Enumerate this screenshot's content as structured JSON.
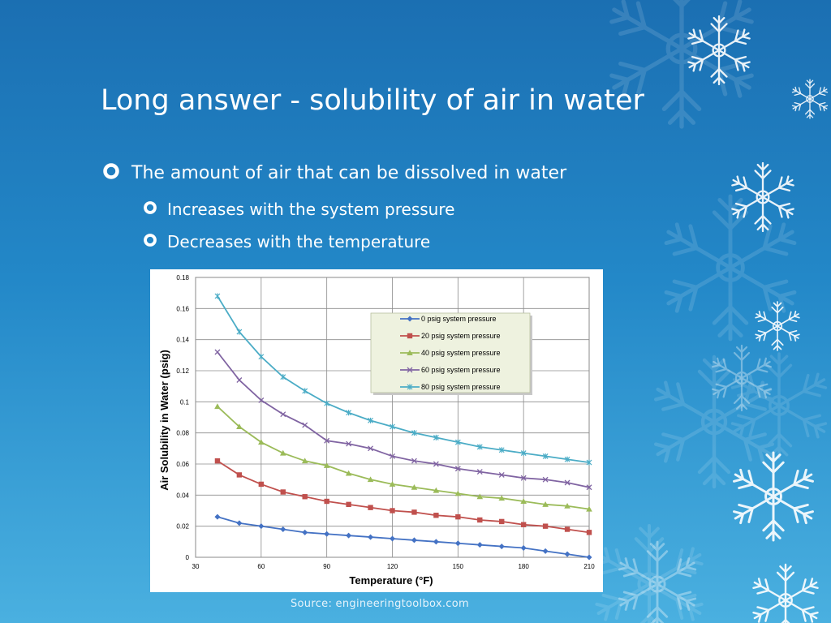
{
  "slide": {
    "title": "Long answer - solubility of air in water",
    "bullets": [
      "The amount of air that can be dissolved in water",
      "Increases with the system pressure",
      "Decreases with the temperature"
    ],
    "source": "Source: engineeringtoolbox.com"
  },
  "colors": {
    "background": "#2388c8",
    "text": "#ffffff"
  },
  "chart_data": {
    "type": "line",
    "xlabel": "Temperature (°F)",
    "ylabel": "Air Solubility in Water (psig)",
    "xlim": [
      30,
      210
    ],
    "ylim": [
      0,
      0.18
    ],
    "xticks": [
      "30",
      "60",
      "90",
      "120",
      "150",
      "180",
      "210"
    ],
    "yticks": [
      "0",
      "0.02",
      "0.04",
      "0.06",
      "0.08",
      "0.1",
      "0.12",
      "0.14",
      "0.16",
      "0.18"
    ],
    "grid": true,
    "legend_position": "top-right",
    "x": [
      40,
      50,
      60,
      70,
      80,
      90,
      100,
      110,
      120,
      130,
      140,
      150,
      160,
      170,
      180,
      190,
      200,
      210
    ],
    "series": [
      {
        "name": "0 psig system pressure",
        "color": "#4472c4",
        "marker": "diamond",
        "values": [
          0.026,
          0.022,
          0.02,
          0.018,
          0.016,
          0.015,
          0.014,
          0.013,
          0.012,
          0.011,
          0.01,
          0.009,
          0.008,
          0.007,
          0.006,
          0.004,
          0.002,
          0.0
        ]
      },
      {
        "name": "20 psig system pressure",
        "color": "#c0504d",
        "marker": "square",
        "values": [
          0.062,
          0.053,
          0.047,
          0.042,
          0.039,
          0.036,
          0.034,
          0.032,
          0.03,
          0.029,
          0.027,
          0.026,
          0.024,
          0.023,
          0.021,
          0.02,
          0.018,
          0.016
        ]
      },
      {
        "name": "40 psig system pressure",
        "color": "#9bbb59",
        "marker": "triangle",
        "values": [
          0.097,
          0.084,
          0.074,
          0.067,
          0.062,
          0.059,
          0.054,
          0.05,
          0.047,
          0.045,
          0.043,
          0.041,
          0.039,
          0.038,
          0.036,
          0.034,
          0.033,
          0.031
        ]
      },
      {
        "name": "60 psig system pressure",
        "color": "#8064a2",
        "marker": "x",
        "values": [
          0.132,
          0.114,
          0.101,
          0.092,
          0.085,
          0.075,
          0.073,
          0.07,
          0.065,
          0.062,
          0.06,
          0.057,
          0.055,
          0.053,
          0.051,
          0.05,
          0.048,
          0.045
        ]
      },
      {
        "name": "80 psig system pressure",
        "color": "#4bacc6",
        "marker": "star",
        "values": [
          0.168,
          0.145,
          0.129,
          0.116,
          0.107,
          0.099,
          0.093,
          0.088,
          0.084,
          0.08,
          0.077,
          0.074,
          0.071,
          0.069,
          0.067,
          0.065,
          0.063,
          0.061
        ]
      }
    ]
  }
}
